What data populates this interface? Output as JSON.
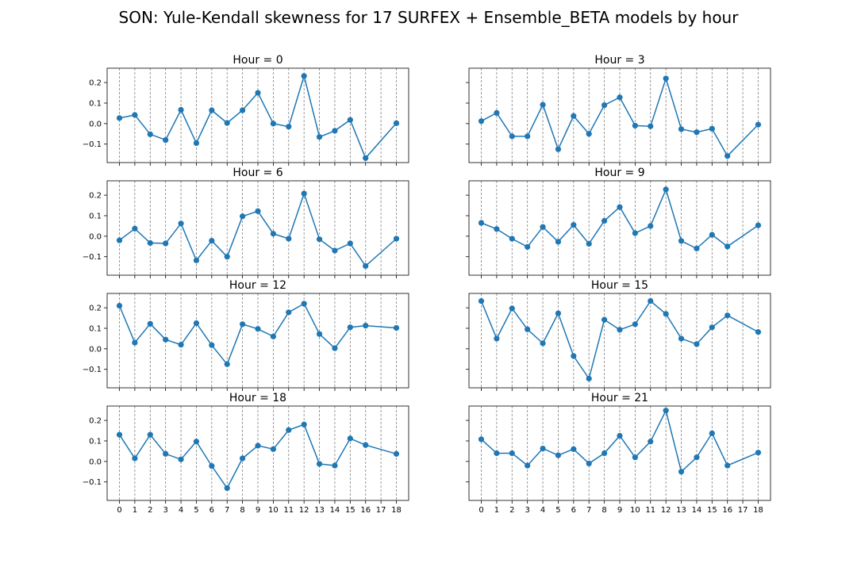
{
  "figure": {
    "title": "SON: Yule-Kendall skewness for 17 SURFEX + Ensemble_BETA models by hour",
    "line_color": "#1f77b4",
    "grid_color": "#808080"
  },
  "chart_data": {
    "type": "line",
    "x": [
      0,
      1,
      2,
      3,
      4,
      5,
      6,
      7,
      8,
      9,
      10,
      11,
      12,
      13,
      14,
      15,
      16,
      18
    ],
    "x_ticks": [
      0,
      1,
      2,
      3,
      4,
      5,
      6,
      7,
      8,
      9,
      10,
      11,
      12,
      13,
      14,
      15,
      16,
      17,
      18
    ],
    "xlim": [
      -0.8,
      18.8
    ],
    "ylim": [
      -0.19,
      0.27
    ],
    "y_ticks": [
      -0.1,
      0.0,
      0.1,
      0.2
    ],
    "y_tick_labels": [
      "−0.1",
      "0.0",
      "0.1",
      "0.2"
    ],
    "grid": "vertical dashed at x ticks",
    "subplots": [
      {
        "title": "Hour = 0",
        "values": [
          0.027,
          0.042,
          -0.052,
          -0.08,
          0.067,
          -0.095,
          0.065,
          0.003,
          0.065,
          0.15,
          0.0,
          -0.015,
          0.232,
          -0.065,
          -0.035,
          0.018,
          -0.168,
          0.002
        ]
      },
      {
        "title": "Hour = 3",
        "values": [
          0.012,
          0.052,
          -0.062,
          -0.062,
          0.092,
          -0.125,
          0.037,
          -0.05,
          0.09,
          0.128,
          -0.01,
          -0.013,
          0.22,
          -0.027,
          -0.042,
          -0.025,
          -0.158,
          -0.005
        ]
      },
      {
        "title": "Hour = 6",
        "values": [
          -0.02,
          0.037,
          -0.033,
          -0.035,
          0.062,
          -0.118,
          -0.022,
          -0.1,
          0.097,
          0.122,
          0.012,
          -0.012,
          0.208,
          -0.015,
          -0.07,
          -0.035,
          -0.145,
          -0.012
        ]
      },
      {
        "title": "Hour = 9",
        "values": [
          0.065,
          0.035,
          -0.012,
          -0.052,
          0.045,
          -0.027,
          0.055,
          -0.037,
          0.075,
          0.142,
          0.015,
          0.05,
          0.228,
          -0.023,
          -0.06,
          0.007,
          -0.05,
          0.053
        ]
      },
      {
        "title": "Hour = 12",
        "values": [
          0.21,
          0.03,
          0.122,
          0.045,
          0.02,
          0.125,
          0.018,
          -0.075,
          0.12,
          0.097,
          0.06,
          0.178,
          0.22,
          0.072,
          0.003,
          0.105,
          0.113,
          0.102
        ]
      },
      {
        "title": "Hour = 15",
        "values": [
          0.233,
          0.05,
          0.197,
          0.095,
          0.027,
          0.173,
          -0.035,
          -0.145,
          0.142,
          0.093,
          0.12,
          0.233,
          0.17,
          0.05,
          0.023,
          0.105,
          0.163,
          0.082
        ]
      },
      {
        "title": "Hour = 18",
        "values": [
          0.13,
          0.015,
          0.13,
          0.037,
          0.01,
          0.097,
          -0.022,
          -0.13,
          0.015,
          0.077,
          0.06,
          0.153,
          0.18,
          -0.012,
          -0.02,
          0.112,
          0.08,
          0.037
        ]
      },
      {
        "title": "Hour = 21",
        "values": [
          0.108,
          0.04,
          0.04,
          -0.02,
          0.063,
          0.03,
          0.06,
          -0.01,
          0.04,
          0.125,
          0.02,
          0.097,
          0.248,
          -0.05,
          0.02,
          0.137,
          -0.02,
          0.043
        ]
      }
    ]
  }
}
